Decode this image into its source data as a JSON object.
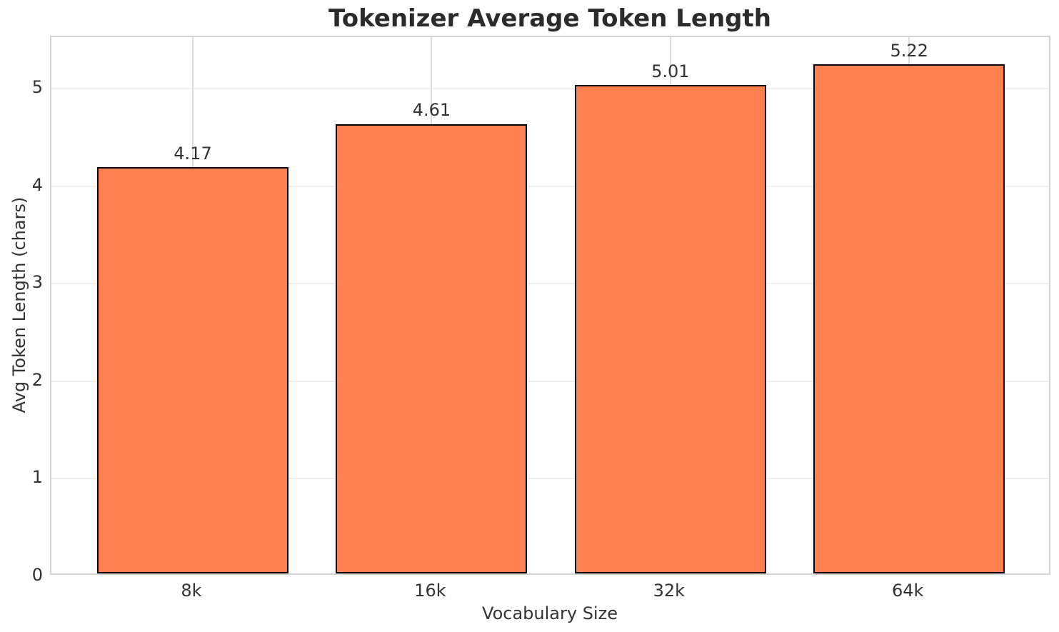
{
  "chart_data": {
    "type": "bar",
    "title": "Tokenizer Average Token Length",
    "xlabel": "Vocabulary Size",
    "ylabel": "Avg Token Length (chars)",
    "categories": [
      "8k",
      "16k",
      "32k",
      "64k"
    ],
    "values": [
      4.17,
      4.61,
      5.01,
      5.22
    ],
    "bar_labels": [
      "4.17",
      "4.61",
      "5.01",
      "5.22"
    ],
    "yticks": [
      "0",
      "1",
      "2",
      "3",
      "4",
      "5"
    ],
    "ylim": [
      0,
      5.53
    ],
    "grid": "on",
    "legend": "none"
  },
  "style": {
    "bar_fill": "#FF7F50",
    "bar_edge": "#000000",
    "grid_x_color": "#DBDBDB",
    "grid_y_color": "#F0F0F0",
    "spine_color": "#D4D4D4",
    "title_color": "#2B2B2B",
    "text_color": "#333333",
    "background": "#FFFFFF"
  }
}
